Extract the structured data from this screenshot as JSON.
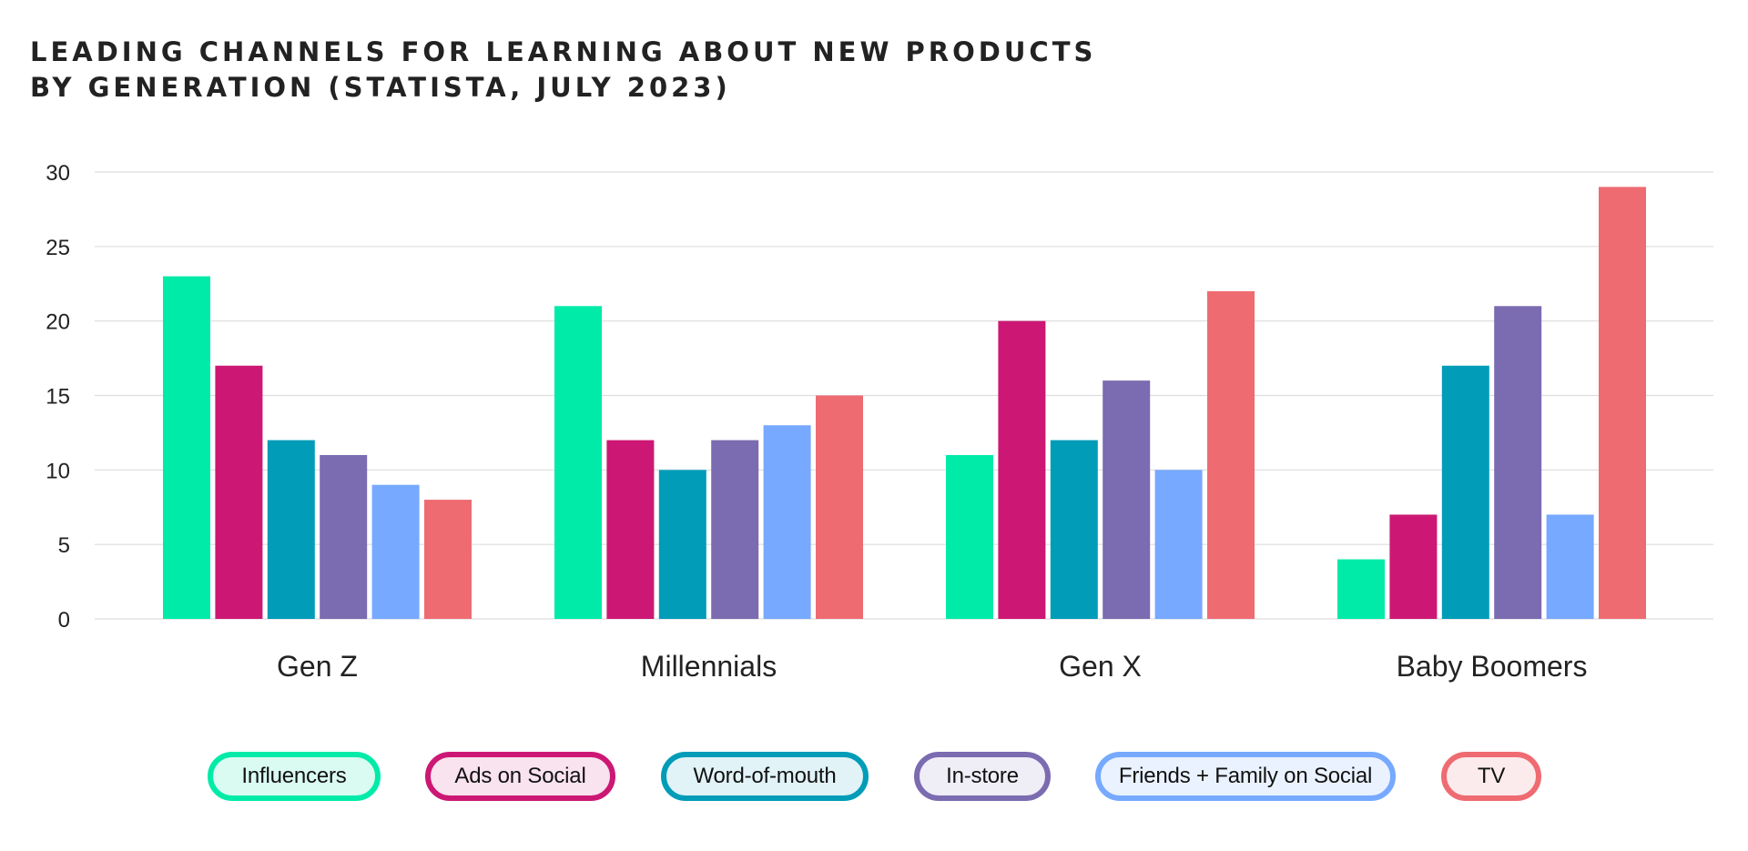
{
  "chart_data": {
    "type": "bar",
    "title_lines": [
      "LEADING CHANNELS FOR LEARNING ABOUT NEW PRODUCTS",
      "BY GENERATION (STATISTA, JULY 2023)"
    ],
    "categories": [
      "Gen Z",
      "Millennials",
      "Gen X",
      "Baby Boomers"
    ],
    "series": [
      {
        "name": "Influencers",
        "color": "#00EBA8",
        "legend_bg": "#D9FBF1",
        "values": [
          23,
          21,
          11,
          4
        ]
      },
      {
        "name": "Ads on Social",
        "color": "#CC1874",
        "legend_bg": "#F8E3EE",
        "values": [
          17,
          12,
          20,
          7
        ]
      },
      {
        "name": "Word-of-mouth",
        "color": "#009CB8",
        "legend_bg": "#E1F3F7",
        "values": [
          12,
          10,
          12,
          17
        ]
      },
      {
        "name": "In-store",
        "color": "#7B6BB0",
        "legend_bg": "#EFEDF6",
        "values": [
          11,
          12,
          16,
          21
        ]
      },
      {
        "name": "Friends + Family on Social",
        "color": "#76A9FF",
        "legend_bg": "#EAF2FF",
        "values": [
          9,
          13,
          10,
          7
        ]
      },
      {
        "name": "TV",
        "color": "#EF6B72",
        "legend_bg": "#FCEBEC",
        "values": [
          8,
          15,
          22,
          29
        ]
      }
    ],
    "y_ticks": [
      0,
      5,
      10,
      15,
      20,
      25,
      30
    ],
    "ylim": [
      0,
      30
    ],
    "grid": true,
    "legend_position": "bottom",
    "xlabel": "",
    "ylabel": ""
  }
}
